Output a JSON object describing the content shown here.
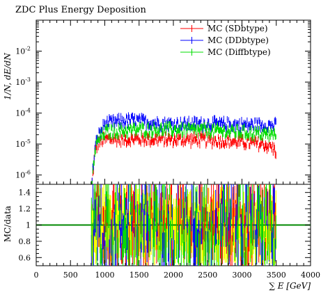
{
  "chart_data": [
    {
      "type": "line",
      "title": "ZDC Plus Energy Deposition",
      "ylabel": "1/N, dE/dN",
      "yscale": "log",
      "ylim": [
        5e-07,
        0.1
      ],
      "xlim": [
        0,
        4000
      ],
      "y_ticks": [
        {
          "base": "10",
          "exp": "-6",
          "value": 1e-06
        },
        {
          "base": "10",
          "exp": "-5",
          "value": 1e-05
        },
        {
          "base": "10",
          "exp": "-4",
          "value": 0.0001
        },
        {
          "base": "10",
          "exp": "-3",
          "value": 0.001
        },
        {
          "base": "10",
          "exp": "-2",
          "value": 0.01
        }
      ],
      "legend_position": "top-right",
      "bin_range": [
        800,
        3500
      ],
      "bin_width": 10,
      "series": [
        {
          "name": "MC (SDbtype)",
          "color": "#ff0000",
          "profile": [
            [
              800,
              2e-07
            ],
            [
              830,
              1.5e-06
            ],
            [
              860,
              6e-06
            ],
            [
              900,
              1.1e-05
            ],
            [
              1000,
              1.5e-05
            ],
            [
              1500,
              1.5e-05
            ],
            [
              2500,
              1.4e-05
            ],
            [
              3000,
              1.2e-05
            ],
            [
              3300,
              1e-05
            ],
            [
              3400,
              9e-06
            ],
            [
              3500,
              6e-06
            ]
          ]
        },
        {
          "name": "MC (DDbtype)",
          "color": "#0000ff",
          "profile": [
            [
              800,
              2e-07
            ],
            [
              830,
              2e-06
            ],
            [
              860,
              8e-06
            ],
            [
              900,
              1.8e-05
            ],
            [
              1000,
              4.5e-05
            ],
            [
              1200,
              5.5e-05
            ],
            [
              1400,
              6e-05
            ],
            [
              1700,
              5e-05
            ],
            [
              2000,
              4.5e-05
            ],
            [
              2500,
              4.6e-05
            ],
            [
              3000,
              4.2e-05
            ],
            [
              3300,
              4.2e-05
            ],
            [
              3500,
              4e-05
            ]
          ]
        },
        {
          "name": "MC (Diffbtype)",
          "color": "#00dd00",
          "profile": [
            [
              800,
              2e-07
            ],
            [
              830,
              1.5e-06
            ],
            [
              860,
              7e-06
            ],
            [
              900,
              1.3e-05
            ],
            [
              1000,
              2.5e-05
            ],
            [
              1500,
              3e-05
            ],
            [
              2000,
              3e-05
            ],
            [
              2500,
              2.8e-05
            ],
            [
              3000,
              2.5e-05
            ],
            [
              3300,
              2.2e-05
            ],
            [
              3500,
              2e-05
            ]
          ]
        }
      ]
    },
    {
      "type": "line",
      "ylabel": "MC/data",
      "xlabel": "∑ E [GeV]",
      "xlim": [
        0,
        4000
      ],
      "ylim": [
        0.5,
        1.5
      ],
      "x_ticks": [
        0,
        500,
        1000,
        1500,
        2000,
        2500,
        3000,
        3500,
        4000
      ],
      "y_ticks": [
        0.6,
        0.8,
        1,
        1.2,
        1.4
      ],
      "reference_line": 1,
      "reference_color": "#008800",
      "band_color": "#ffff00",
      "bin_range": [
        800,
        3500
      ]
    }
  ]
}
